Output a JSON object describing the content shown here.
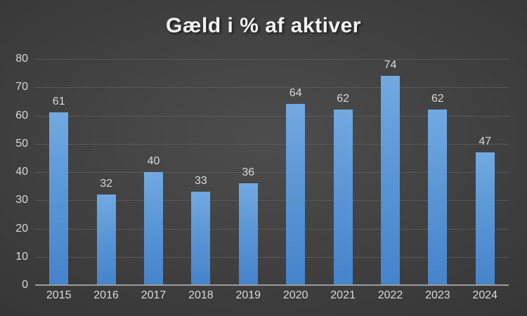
{
  "chart_data": {
    "type": "bar",
    "title": "Gæld i % af aktiver",
    "categories": [
      "2015",
      "2016",
      "2017",
      "2018",
      "2019",
      "2020",
      "2021",
      "2022",
      "2023",
      "2024"
    ],
    "values": [
      61,
      32,
      40,
      33,
      36,
      64,
      62,
      74,
      62,
      47
    ],
    "xlabel": "",
    "ylabel": "",
    "ylim": [
      0,
      80
    ],
    "ytick_step": 10,
    "yticks": [
      0,
      10,
      20,
      30,
      40,
      50,
      60,
      70,
      80
    ],
    "grid": true,
    "data_labels": true,
    "legend": "none",
    "colors": {
      "bar_top": "#72a9e1",
      "bar_mid": "#5b97d6",
      "bar_bottom": "#4583cb",
      "background_center": "#4d4d4d",
      "background_edge": "#2a2a2a",
      "gridline": "#585858",
      "axis_line": "#9c9c9c",
      "tick_text": "#d9d9d9",
      "label_text": "#d9d9d9",
      "title_text": "#f2f2f2"
    }
  }
}
